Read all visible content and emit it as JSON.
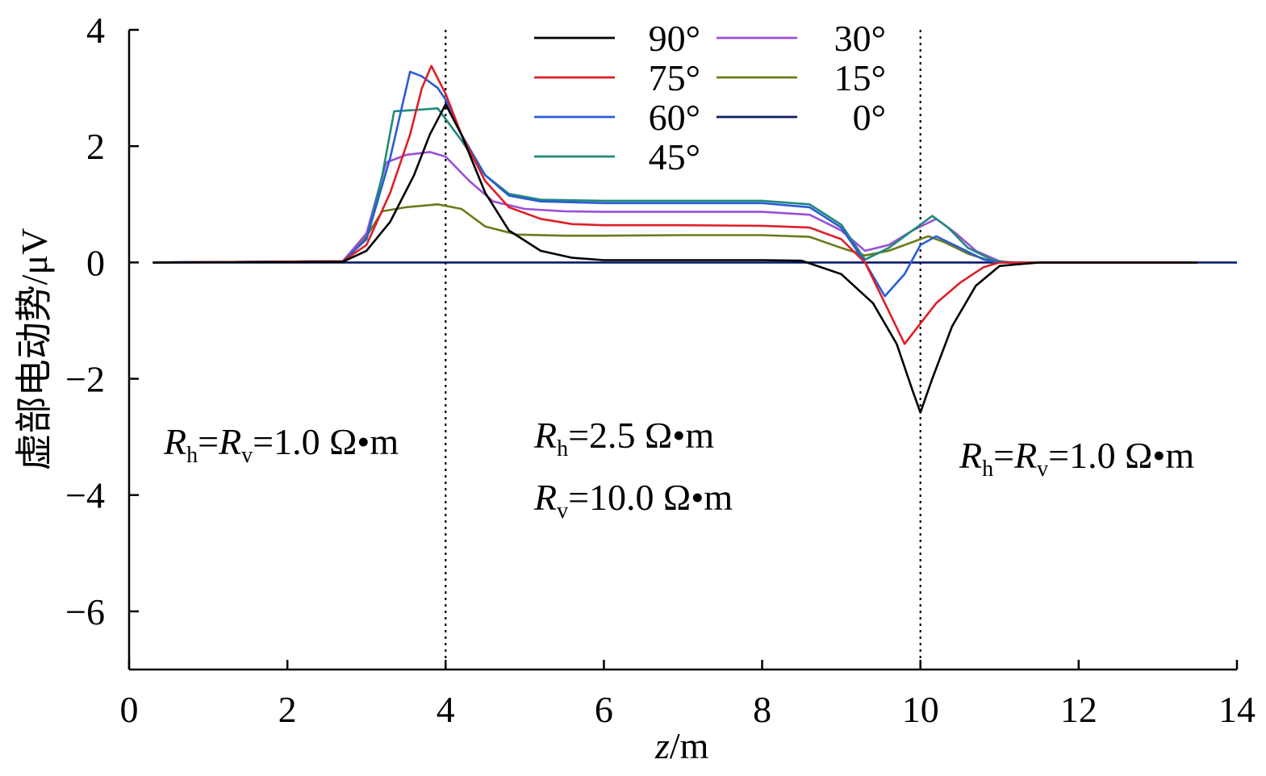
{
  "chart_data": {
    "type": "line",
    "xlabel_var": "z",
    "xlabel_unit": "/m",
    "ylabel": "虚部电动势/μV",
    "xlim": [
      0,
      14
    ],
    "ylim": [
      -7,
      4
    ],
    "x_ticks": [
      "0",
      "2",
      "4",
      "6",
      "8",
      "10",
      "12",
      "14"
    ],
    "y_ticks": [
      "4",
      "2",
      "0",
      "−2",
      "−4",
      "−6"
    ],
    "grid": false,
    "legend_position": "top-center",
    "boundaries": [
      4,
      10
    ],
    "series": [
      {
        "name": "90°",
        "color": "#000000",
        "points": [
          [
            0.3,
            0
          ],
          [
            2.7,
            0.01
          ],
          [
            3.0,
            0.2
          ],
          [
            3.3,
            0.7
          ],
          [
            3.6,
            1.5
          ],
          [
            3.8,
            2.2
          ],
          [
            4.0,
            2.72
          ],
          [
            4.2,
            2.2
          ],
          [
            4.5,
            1.2
          ],
          [
            4.8,
            0.55
          ],
          [
            5.2,
            0.2
          ],
          [
            5.6,
            0.08
          ],
          [
            6,
            0.04
          ],
          [
            7,
            0.04
          ],
          [
            8,
            0.04
          ],
          [
            8.5,
            0.03
          ],
          [
            9.0,
            -0.2
          ],
          [
            9.4,
            -0.7
          ],
          [
            9.7,
            -1.4
          ],
          [
            9.9,
            -2.2
          ],
          [
            10.0,
            -2.58
          ],
          [
            10.15,
            -2.0
          ],
          [
            10.4,
            -1.1
          ],
          [
            10.7,
            -0.4
          ],
          [
            11.0,
            -0.06
          ],
          [
            11.5,
            0
          ],
          [
            13.5,
            0
          ]
        ]
      },
      {
        "name": "75°",
        "color": "#dd1f26",
        "points": [
          [
            0.3,
            0
          ],
          [
            2.7,
            0.02
          ],
          [
            3.0,
            0.3
          ],
          [
            3.3,
            1.2
          ],
          [
            3.55,
            2.2
          ],
          [
            3.7,
            3.0
          ],
          [
            3.82,
            3.38
          ],
          [
            4.0,
            2.9
          ],
          [
            4.2,
            2.2
          ],
          [
            4.5,
            1.4
          ],
          [
            4.8,
            0.95
          ],
          [
            5.2,
            0.75
          ],
          [
            5.6,
            0.66
          ],
          [
            6,
            0.64
          ],
          [
            7,
            0.64
          ],
          [
            8,
            0.63
          ],
          [
            8.6,
            0.6
          ],
          [
            9.0,
            0.4
          ],
          [
            9.3,
            0.0
          ],
          [
            9.55,
            -0.7
          ],
          [
            9.8,
            -1.4
          ],
          [
            10.0,
            -1.05
          ],
          [
            10.2,
            -0.7
          ],
          [
            10.5,
            -0.35
          ],
          [
            10.8,
            -0.08
          ],
          [
            11.0,
            0
          ],
          [
            13.5,
            0
          ]
        ]
      },
      {
        "name": "60°",
        "color": "#2a5cd6",
        "points": [
          [
            0.3,
            0
          ],
          [
            2.7,
            0.02
          ],
          [
            3.0,
            0.4
          ],
          [
            3.3,
            1.8
          ],
          [
            3.55,
            3.28
          ],
          [
            3.7,
            3.2
          ],
          [
            3.9,
            3.0
          ],
          [
            4.0,
            2.8
          ],
          [
            4.2,
            2.2
          ],
          [
            4.5,
            1.5
          ],
          [
            4.8,
            1.15
          ],
          [
            5.2,
            1.05
          ],
          [
            6,
            1.02
          ],
          [
            7,
            1.02
          ],
          [
            8,
            1.02
          ],
          [
            8.6,
            0.95
          ],
          [
            9.0,
            0.6
          ],
          [
            9.3,
            0.0
          ],
          [
            9.55,
            -0.58
          ],
          [
            9.8,
            -0.2
          ],
          [
            10.0,
            0.3
          ],
          [
            10.2,
            0.45
          ],
          [
            10.5,
            0.25
          ],
          [
            10.8,
            0.05
          ],
          [
            11.0,
            0
          ],
          [
            13.5,
            0
          ]
        ]
      },
      {
        "name": "45°",
        "color": "#1f8a7a",
        "points": [
          [
            0.3,
            0
          ],
          [
            2.7,
            0.02
          ],
          [
            3.0,
            0.4
          ],
          [
            3.2,
            1.5
          ],
          [
            3.35,
            2.6
          ],
          [
            3.6,
            2.62
          ],
          [
            3.9,
            2.65
          ],
          [
            4.2,
            2.1
          ],
          [
            4.5,
            1.5
          ],
          [
            4.8,
            1.18
          ],
          [
            5.2,
            1.08
          ],
          [
            6,
            1.06
          ],
          [
            7,
            1.06
          ],
          [
            8,
            1.06
          ],
          [
            8.6,
            1.0
          ],
          [
            9.0,
            0.65
          ],
          [
            9.3,
            0.05
          ],
          [
            9.6,
            0.25
          ],
          [
            9.9,
            0.55
          ],
          [
            10.15,
            0.8
          ],
          [
            10.35,
            0.6
          ],
          [
            10.6,
            0.25
          ],
          [
            10.9,
            0.05
          ],
          [
            11.1,
            0
          ],
          [
            13.5,
            0
          ]
        ]
      },
      {
        "name": "30°",
        "color": "#9b4fd8",
        "points": [
          [
            0.3,
            0
          ],
          [
            2.7,
            0.02
          ],
          [
            3.0,
            0.5
          ],
          [
            3.25,
            1.72
          ],
          [
            3.5,
            1.85
          ],
          [
            3.8,
            1.9
          ],
          [
            4.0,
            1.82
          ],
          [
            4.3,
            1.4
          ],
          [
            4.6,
            1.05
          ],
          [
            5.0,
            0.92
          ],
          [
            5.5,
            0.88
          ],
          [
            6,
            0.87
          ],
          [
            7,
            0.87
          ],
          [
            8,
            0.87
          ],
          [
            8.6,
            0.82
          ],
          [
            9.0,
            0.55
          ],
          [
            9.3,
            0.2
          ],
          [
            9.6,
            0.3
          ],
          [
            9.9,
            0.55
          ],
          [
            10.2,
            0.75
          ],
          [
            10.45,
            0.5
          ],
          [
            10.7,
            0.2
          ],
          [
            11.0,
            0.02
          ],
          [
            11.2,
            0
          ],
          [
            13.5,
            0
          ]
        ]
      },
      {
        "name": "15°",
        "color": "#6b7a1a",
        "points": [
          [
            0.3,
            0
          ],
          [
            2.7,
            0.02
          ],
          [
            3.0,
            0.45
          ],
          [
            3.2,
            0.88
          ],
          [
            3.5,
            0.95
          ],
          [
            3.9,
            1.0
          ],
          [
            4.2,
            0.92
          ],
          [
            4.5,
            0.62
          ],
          [
            4.9,
            0.48
          ],
          [
            5.5,
            0.46
          ],
          [
            6,
            0.46
          ],
          [
            7,
            0.47
          ],
          [
            8,
            0.47
          ],
          [
            8.6,
            0.44
          ],
          [
            9.0,
            0.25
          ],
          [
            9.3,
            0.12
          ],
          [
            9.6,
            0.2
          ],
          [
            9.9,
            0.35
          ],
          [
            10.1,
            0.45
          ],
          [
            10.3,
            0.35
          ],
          [
            10.6,
            0.15
          ],
          [
            10.9,
            0.02
          ],
          [
            11.1,
            0
          ],
          [
            13.5,
            0
          ]
        ]
      },
      {
        "name": "0°",
        "color": "#0b1a66",
        "points": [
          [
            0.3,
            0
          ],
          [
            14,
            0
          ]
        ]
      }
    ],
    "annotations": [
      {
        "type": "double",
        "prefix": "R",
        "sub1": "h",
        "sep": "=R",
        "sub2": "v",
        "rest": "=1.0 Ω•m"
      },
      {
        "type": "single",
        "prefix": "R",
        "sub": "h",
        "rest": "=2.5 Ω•m"
      },
      {
        "type": "single",
        "prefix": "R",
        "sub": "v",
        "rest": "=10.0 Ω•m"
      },
      {
        "type": "double",
        "prefix": "R",
        "sub1": "h",
        "sep": "=R",
        "sub2": "v",
        "rest": "=1.0 Ω•m"
      }
    ]
  }
}
